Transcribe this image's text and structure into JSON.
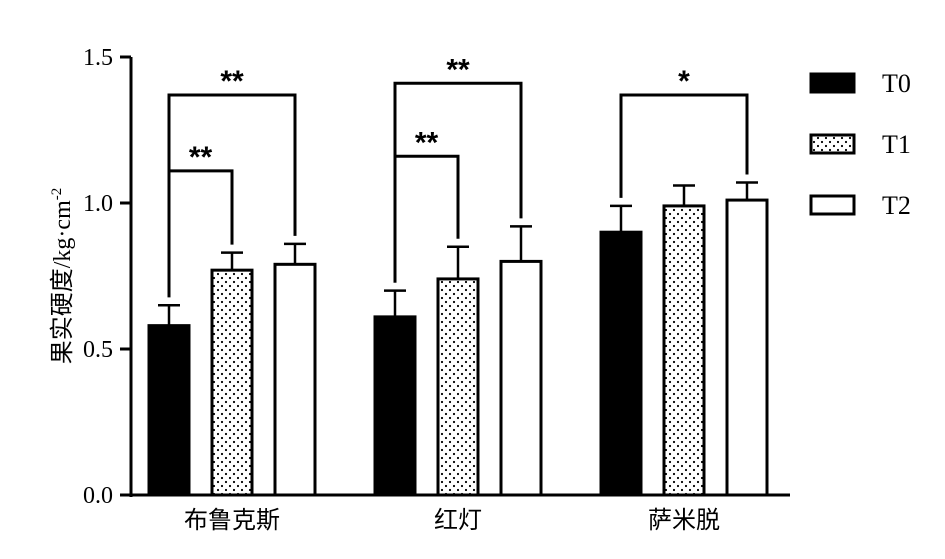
{
  "chart_data": {
    "type": "bar",
    "title": "",
    "xlabel": "",
    "ylabel": "果实硬度/kg·cm",
    "ylabel_superscript": "-2",
    "ylim": [
      0,
      1.5
    ],
    "yticks": [
      "0.0",
      "0.5",
      "1.0",
      "1.5"
    ],
    "ytick_values": [
      0,
      0.5,
      1.0,
      1.5
    ],
    "categories": [
      "布鲁克斯",
      "红灯",
      "萨米脱"
    ],
    "series": [
      {
        "name": "T0",
        "values": [
          0.58,
          0.61,
          0.9
        ],
        "errors": [
          0.07,
          0.09,
          0.09
        ],
        "fill": "solid-black"
      },
      {
        "name": "T1",
        "values": [
          0.77,
          0.74,
          0.99
        ],
        "errors": [
          0.06,
          0.11,
          0.07
        ],
        "fill": "dotted"
      },
      {
        "name": "T2",
        "values": [
          0.79,
          0.8,
          1.01
        ],
        "errors": [
          0.07,
          0.12,
          0.06
        ],
        "fill": "white"
      }
    ],
    "significance": [
      {
        "category": 0,
        "from": 0,
        "to": 1,
        "label": "**",
        "y": 1.11
      },
      {
        "category": 0,
        "from": 0,
        "to": 2,
        "label": "**",
        "y": 1.37
      },
      {
        "category": 1,
        "from": 0,
        "to": 1,
        "label": "**",
        "y": 1.16
      },
      {
        "category": 1,
        "from": 0,
        "to": 2,
        "label": "**",
        "y": 1.41
      },
      {
        "category": 2,
        "from": 0,
        "to": 2,
        "label": "*",
        "y": 1.37
      }
    ],
    "legend_position": "right",
    "grid": false
  }
}
